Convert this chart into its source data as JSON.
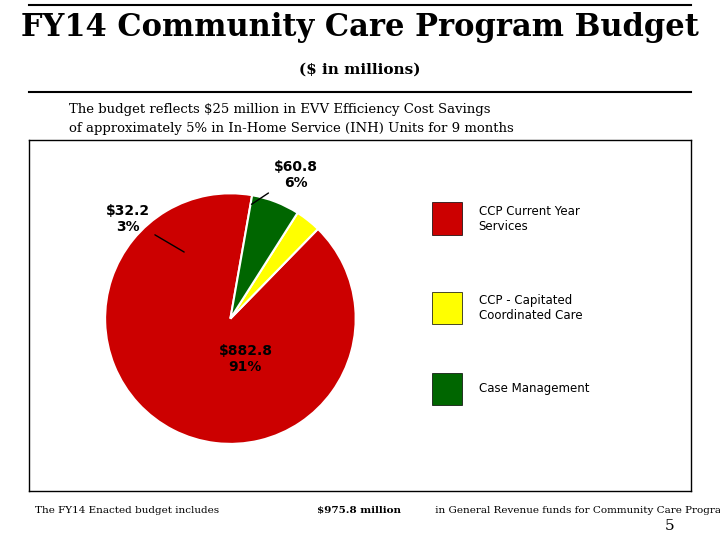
{
  "title": "FY14 Community Care Program Budget",
  "subtitle": "($ in millions)",
  "subtitle_text": "The budget reflects $25 million in EVV Efficiency Cost Savings\nof approximately 5% in In-Home Service (INH) Units for 9 months",
  "footer_part1": "The FY14 Enacted budget includes ",
  "footer_bold": "$975.8 million",
  "footer_part2": " in General Revenue funds for Community Care Program Services.",
  "page_number": "5",
  "pie_values": [
    882.8,
    32.2,
    60.8
  ],
  "pie_colors": [
    "#CC0000",
    "#FFFF00",
    "#006600"
  ],
  "pie_startangle": 80,
  "legend_labels": [
    "CCP Current Year\nServices",
    "CCP - Capitated\nCoordinated Care",
    "Case Management"
  ],
  "legend_colors": [
    "#CC0000",
    "#FFFF00",
    "#006600"
  ],
  "background_color": "#FFFFFF",
  "title_fontsize": 22,
  "subtitle_fontsize": 11
}
